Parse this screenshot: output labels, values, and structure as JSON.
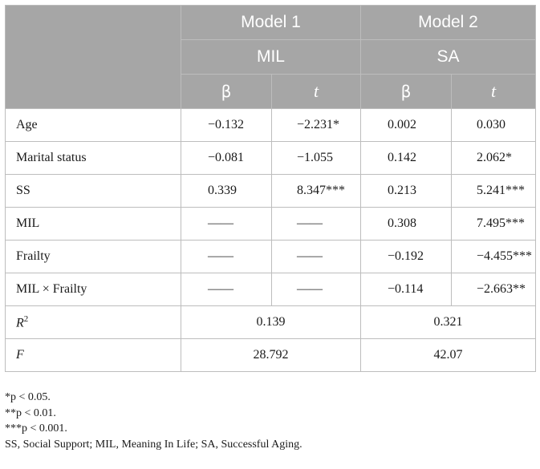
{
  "header": {
    "model1": "Model 1",
    "model2": "Model 2",
    "dv1": "MIL",
    "dv2": "SA",
    "beta": "β",
    "t": "t"
  },
  "rows": [
    {
      "label": "Age",
      "m1_beta": "−0.132",
      "m1_t": "−2.231*",
      "m2_beta": "0.002",
      "m2_t": "0.030"
    },
    {
      "label": "Marital status",
      "m1_beta": "−0.081",
      "m1_t": "−1.055",
      "m2_beta": "0.142",
      "m2_t": "2.062*"
    },
    {
      "label": "SS",
      "m1_beta": "0.339",
      "m1_t": "8.347***",
      "m2_beta": "0.213",
      "m2_t": "5.241***"
    },
    {
      "label": "MIL",
      "m1_beta": "——",
      "m1_t": "——",
      "m2_beta": "0.308",
      "m2_t": "7.495***"
    },
    {
      "label": "Frailty",
      "m1_beta": "——",
      "m1_t": "——",
      "m2_beta": "−0.192",
      "m2_t": "−4.455***"
    },
    {
      "label": "MIL × Frailty",
      "m1_beta": "——",
      "m1_t": "——",
      "m2_beta": "−0.114",
      "m2_t": "−2.663**"
    }
  ],
  "summary": {
    "r2_label_main": "R",
    "r2_label_sup": "2",
    "r2_m1": "0.139",
    "r2_m2": "0.321",
    "f_label": "F",
    "f_m1": "28.792",
    "f_m2": "42.07"
  },
  "notes": [
    "*p < 0.05.",
    "**p < 0.01.",
    "***p < 0.001.",
    "SS, Social Support; MIL, Meaning In Life; SA, Successful Aging."
  ]
}
